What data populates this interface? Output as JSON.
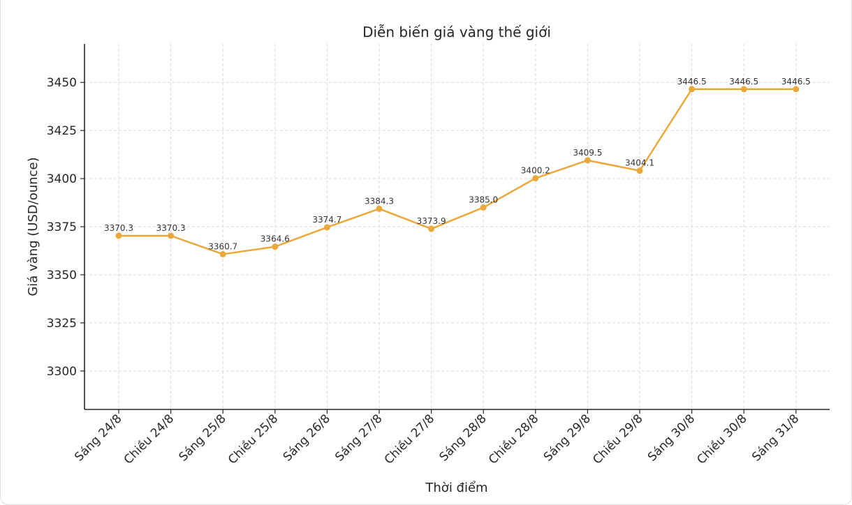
{
  "chart_data": {
    "type": "line",
    "title": "Diễn biến giá vàng thế giới",
    "xlabel": "Thời điểm",
    "ylabel": "Giá vàng (USD/ounce)",
    "categories": [
      "Sáng 24/8",
      "Chiều 24/8",
      "Sáng 25/8",
      "Chiều 25/8",
      "Sáng 26/8",
      "Sáng 27/8",
      "Chiều 27/8",
      "Sáng 28/8",
      "Chiều 28/8",
      "Sáng 29/8",
      "Chiều 29/8",
      "Sáng 30/8",
      "Chiều 30/8",
      "Sáng 31/8"
    ],
    "values": [
      3370.3,
      3370.3,
      3360.7,
      3364.6,
      3374.7,
      3384.3,
      3373.9,
      3385.0,
      3400.2,
      3409.5,
      3404.1,
      3446.5,
      3446.5,
      3446.5
    ],
    "data_labels": [
      "3370.3",
      "3370.3",
      "3360.7",
      "3364.6",
      "3374.7",
      "3384.3",
      "3373.9",
      "3385.0",
      "3400.2",
      "3409.5",
      "3404.1",
      "3446.5",
      "3446.5",
      "3446.5"
    ],
    "y_ticks": [
      3300,
      3325,
      3350,
      3375,
      3400,
      3425,
      3450
    ],
    "y_tick_labels": [
      "3300",
      "3325",
      "3350",
      "3375",
      "3400",
      "3425",
      "3450"
    ],
    "ylim": [
      3280,
      3470
    ],
    "grid": true,
    "line_color": "#EBA83A"
  }
}
